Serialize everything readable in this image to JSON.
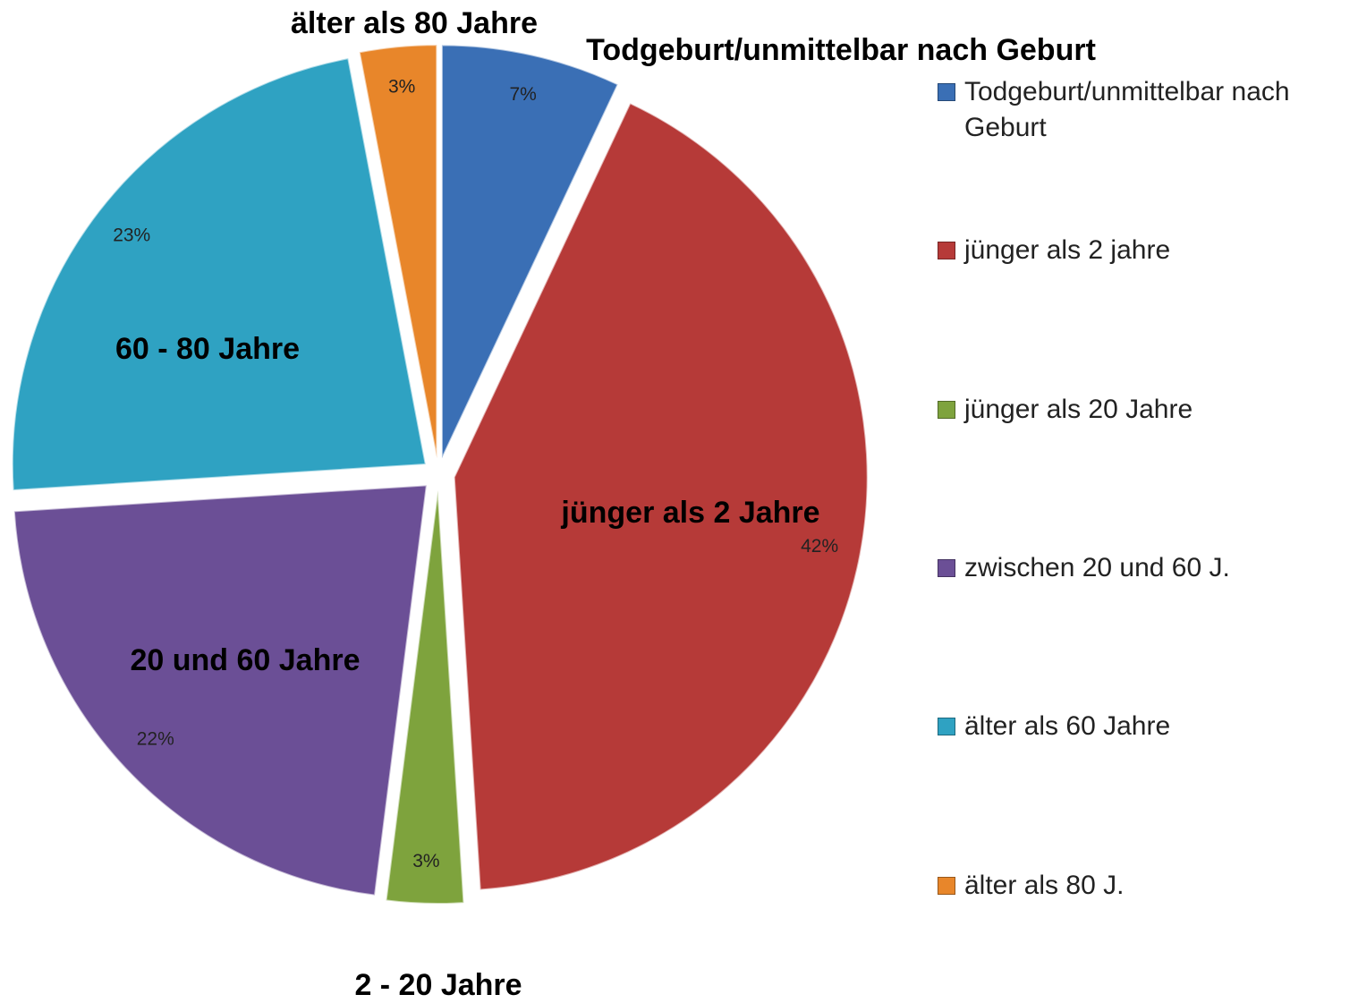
{
  "chart_data": {
    "type": "pie",
    "categories": [
      "Todgeburt/unmittelbar nach Geburt",
      "jünger als 2 jahre",
      "jünger als 20 Jahre",
      "zwischen 20 und 60 J.",
      "älter als 60 Jahre",
      "älter als 80 J."
    ],
    "values": [
      7,
      42,
      3,
      22,
      23,
      3
    ],
    "value_labels": [
      "7%",
      "42%",
      "3%",
      "22%",
      "23%",
      "3%"
    ],
    "colors": [
      "#3a6fb5",
      "#b63a38",
      "#7ea33d",
      "#6b4f96",
      "#2fa2c2",
      "#e8862a"
    ],
    "annotations": [
      "älter als 80 Jahre",
      "Todgeburt/unmittelbar nach Geburt",
      "60 - 80 Jahre",
      "jünger als 2 Jahre",
      "20 und 60 Jahre",
      "2 - 20 Jahre"
    ],
    "legend": "right"
  }
}
